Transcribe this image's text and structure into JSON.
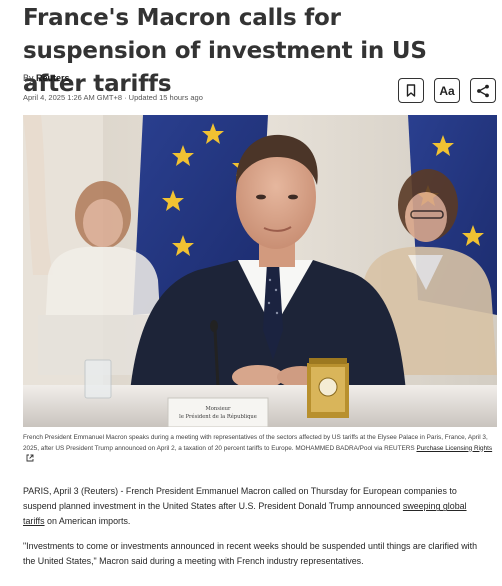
{
  "article": {
    "headline": "France's Macron calls for suspension of investment in US after tariffs",
    "byline_prefix": "By",
    "byline_author": "Reuters",
    "dateline": "April 4, 2025 1:26 AM GMT+8 · Updated 15 hours ago"
  },
  "toolbar": {
    "aa_label": "Aa",
    "icons": [
      "bookmark-icon",
      "text-size-icon",
      "share-icon"
    ]
  },
  "photo": {
    "nameplate_line1": "Monsieur",
    "nameplate_line2": "le Président de la République"
  },
  "caption": {
    "text": "French President Emmanuel Macron speaks during a meeting with representatives of the sectors affected by US tariffs at the Elysee Palace in Paris, France, April 3, 2025, after US President Trump announced on April 2, a taxation of 20 percent tariffs to Europe. MOHAMMED BADRA/Pool via REUTERS",
    "link_label": "Purchase Licensing Rights"
  },
  "body": {
    "p1_before": "PARIS, April 3 (Reuters) - French President Emmanuel Macron called on Thursday for European companies to suspend planned investment in the United States after U.S. President Donald Trump announced ",
    "p1_link": "sweeping global tariffs",
    "p1_after": " on American imports.",
    "p2": "\"Investments to come or investments announced in recent weeks should be suspended until things are clarified with the United States,\" Macron said during a meeting with French industry representatives."
  }
}
